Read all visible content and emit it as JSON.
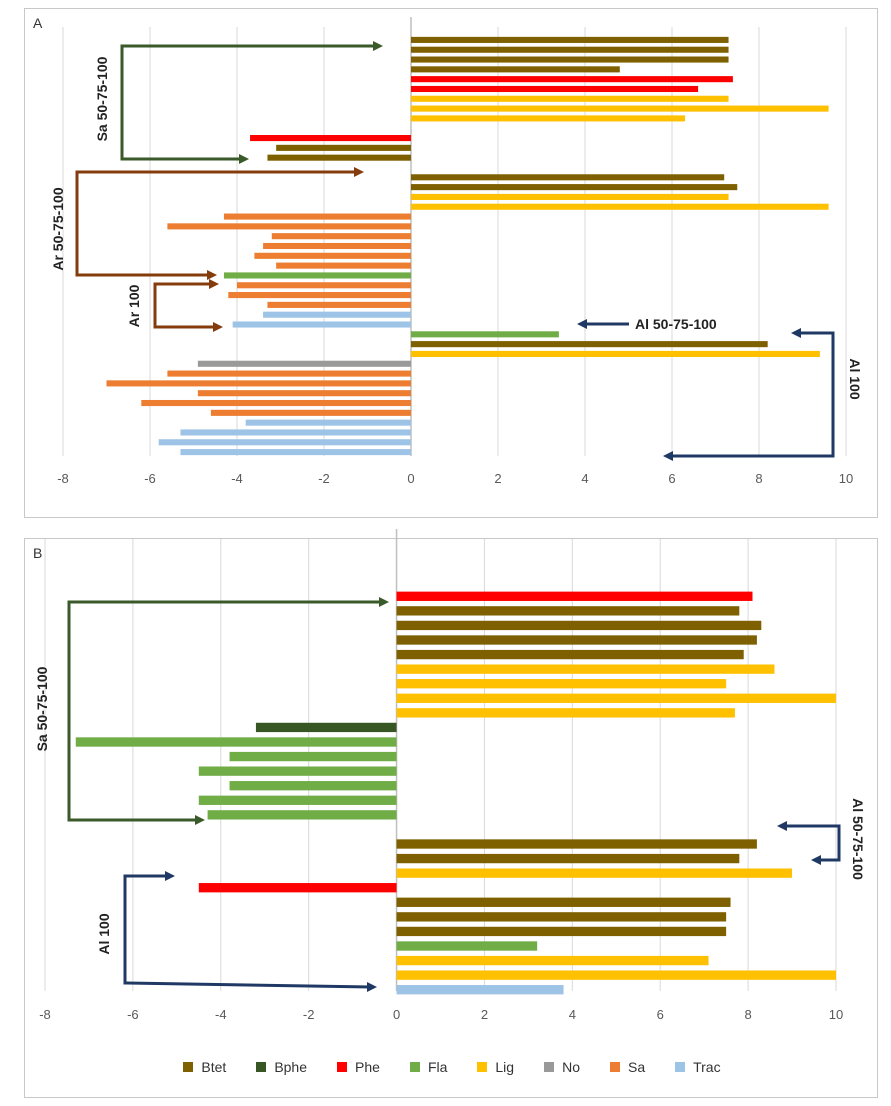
{
  "colors": {
    "Btet": "#7f6000",
    "Bphe": "#375623",
    "Phe": "#ff0000",
    "Fla": "#70ad47",
    "Lig": "#ffc000",
    "No": "#999999",
    "Sa": "#ed7d31",
    "Trac": "#9dc3e6",
    "arrow_green": "#3a5a2a",
    "arrow_brown": "#843c0c",
    "arrow_navy": "#1f3864",
    "grid": "#d9d9d9",
    "axis": "#bfbfbf"
  },
  "chart_data": [
    {
      "panel": "A",
      "type": "bar",
      "orientation": "horizontal",
      "xlim": [
        -8,
        10
      ],
      "xticks": [
        -8,
        -6,
        -4,
        -2,
        0,
        2,
        4,
        6,
        8,
        10
      ],
      "bars": [
        {
          "cat": "Btet",
          "value": 7.3
        },
        {
          "cat": "Btet",
          "value": 7.3
        },
        {
          "cat": "Btet",
          "value": 7.3
        },
        {
          "cat": "Btet",
          "value": 4.8
        },
        {
          "cat": "Phe",
          "value": 7.4
        },
        {
          "cat": "Phe",
          "value": 6.6
        },
        {
          "cat": "Lig",
          "value": 7.3
        },
        {
          "cat": "Lig",
          "value": 9.6
        },
        {
          "cat": "Lig",
          "value": 6.3
        },
        {
          "cat": null,
          "value": 0
        },
        {
          "cat": "Phe",
          "value": -3.7
        },
        {
          "cat": "Btet",
          "value": -3.1
        },
        {
          "cat": "Btet",
          "value": -3.3
        },
        {
          "cat": null,
          "value": 0
        },
        {
          "cat": "Btet",
          "value": 7.2
        },
        {
          "cat": "Btet",
          "value": 7.5
        },
        {
          "cat": "Lig",
          "value": 7.3
        },
        {
          "cat": "Lig",
          "value": 9.6
        },
        {
          "cat": "Sa",
          "value": -4.3
        },
        {
          "cat": "Sa",
          "value": -5.6
        },
        {
          "cat": "Sa",
          "value": -3.2
        },
        {
          "cat": "Sa",
          "value": -3.4
        },
        {
          "cat": "Sa",
          "value": -3.6
        },
        {
          "cat": "Sa",
          "value": -3.1
        },
        {
          "cat": "Fla",
          "value": -4.3
        },
        {
          "cat": "Sa",
          "value": -4.0
        },
        {
          "cat": "Sa",
          "value": -4.2
        },
        {
          "cat": "Sa",
          "value": -3.3
        },
        {
          "cat": "Trac",
          "value": -3.4
        },
        {
          "cat": "Trac",
          "value": -4.1
        },
        {
          "cat": "Fla",
          "value": 3.4
        },
        {
          "cat": "Btet",
          "value": 8.2
        },
        {
          "cat": "Lig",
          "value": 9.4
        },
        {
          "cat": "No",
          "value": -4.9
        },
        {
          "cat": "Sa",
          "value": -5.6
        },
        {
          "cat": "Sa",
          "value": -7.0
        },
        {
          "cat": "Sa",
          "value": -4.9
        },
        {
          "cat": "Sa",
          "value": -6.2
        },
        {
          "cat": "Sa",
          "value": -4.6
        },
        {
          "cat": "Trac",
          "value": -3.8
        },
        {
          "cat": "Trac",
          "value": -5.3
        },
        {
          "cat": "Trac",
          "value": -5.8
        },
        {
          "cat": "Trac",
          "value": -5.3
        }
      ],
      "annotations": [
        "Sa 50-75-100",
        "Ar 50-75-100",
        "Ar 100",
        "Al 50-75-100",
        "Al 100"
      ]
    },
    {
      "panel": "B",
      "type": "bar",
      "orientation": "horizontal",
      "xlim": [
        -8,
        10
      ],
      "xticks": [
        -8,
        -6,
        -4,
        -2,
        0,
        2,
        4,
        6,
        8,
        10
      ],
      "bars": [
        {
          "cat": "Phe",
          "value": 8.1
        },
        {
          "cat": "Btet",
          "value": 7.8
        },
        {
          "cat": "Btet",
          "value": 8.3
        },
        {
          "cat": "Btet",
          "value": 8.2
        },
        {
          "cat": "Btet",
          "value": 7.9
        },
        {
          "cat": "Lig",
          "value": 8.6
        },
        {
          "cat": "Lig",
          "value": 7.5
        },
        {
          "cat": "Lig",
          "value": 10.0
        },
        {
          "cat": "Lig",
          "value": 7.7
        },
        {
          "cat": "Bphe",
          "value": -3.2
        },
        {
          "cat": "Fla",
          "value": -7.3
        },
        {
          "cat": "Fla",
          "value": -3.8
        },
        {
          "cat": "Fla",
          "value": -4.5
        },
        {
          "cat": "Fla",
          "value": -3.8
        },
        {
          "cat": "Fla",
          "value": -4.5
        },
        {
          "cat": "Fla",
          "value": -4.3
        },
        {
          "cat": null,
          "value": 0
        },
        {
          "cat": "Btet",
          "value": 8.2
        },
        {
          "cat": "Btet",
          "value": 7.8
        },
        {
          "cat": "Lig",
          "value": 9.0
        },
        {
          "cat": "Phe",
          "value": -4.5
        },
        {
          "cat": "Btet",
          "value": 7.6
        },
        {
          "cat": "Btet",
          "value": 7.5
        },
        {
          "cat": "Btet",
          "value": 7.5
        },
        {
          "cat": "Fla",
          "value": 3.2
        },
        {
          "cat": "Lig",
          "value": 7.1
        },
        {
          "cat": "Lig",
          "value": 10.0
        },
        {
          "cat": "Trac",
          "value": 3.8
        }
      ],
      "annotations": [
        "Sa 50-75-100",
        "Al 50-75-100",
        "Al 100"
      ]
    }
  ],
  "panels": {
    "A": {
      "label": "A"
    },
    "B": {
      "label": "B"
    }
  },
  "legend": [
    {
      "key": "Btet",
      "label": "Btet"
    },
    {
      "key": "Bphe",
      "label": "Bphe"
    },
    {
      "key": "Phe",
      "label": "Phe"
    },
    {
      "key": "Fla",
      "label": "Fla"
    },
    {
      "key": "Lig",
      "label": "Lig"
    },
    {
      "key": "No",
      "label": "No"
    },
    {
      "key": "Sa",
      "label": "Sa"
    },
    {
      "key": "Trac",
      "label": "Trac"
    }
  ]
}
